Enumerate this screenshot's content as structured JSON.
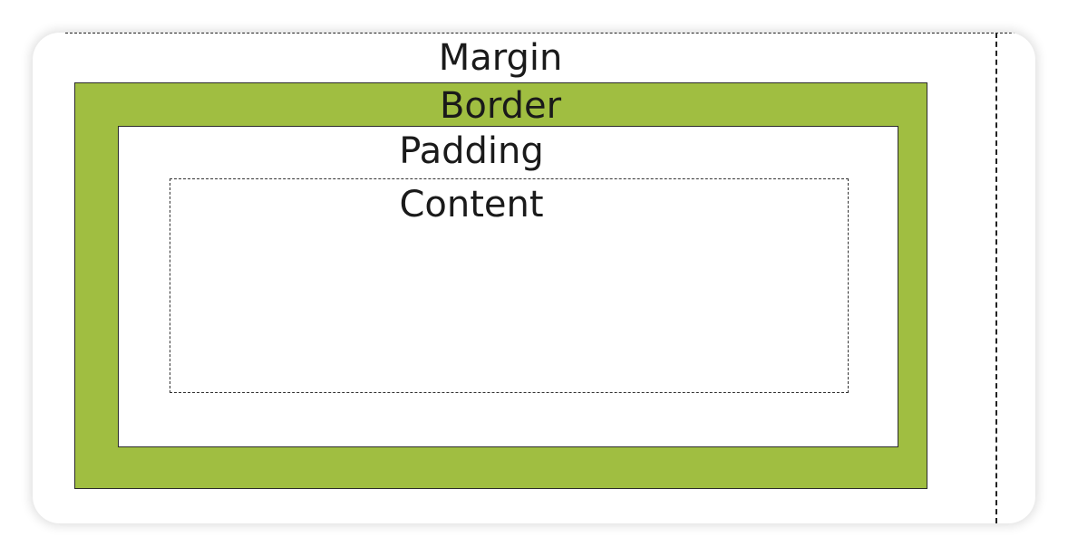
{
  "colors": {
    "border_fill": "#a0be41",
    "outline": "#2b2b2b",
    "text": "#1a1a1a",
    "background": "#ffffff"
  },
  "labels": {
    "margin": "Margin",
    "border": "Border",
    "padding": "Padding",
    "content": "Content"
  }
}
